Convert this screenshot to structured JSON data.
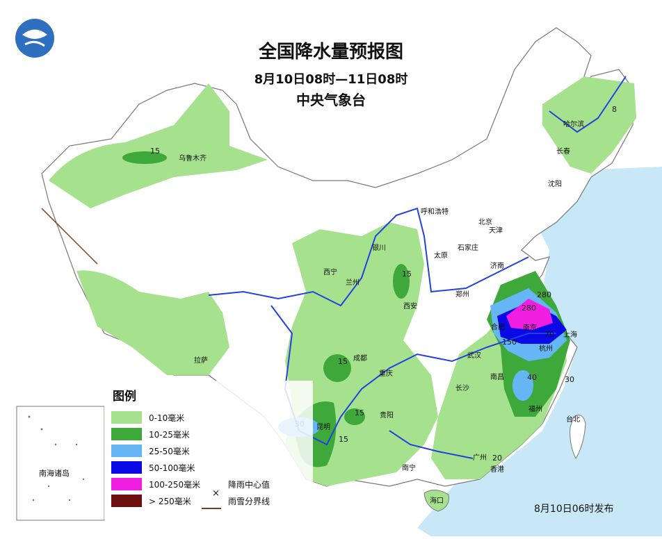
{
  "title": "全国降水量预报图",
  "subtitle": "8月10日08时—11日08时",
  "agency": "中央气象台",
  "release": "8月10日06时发布",
  "inset_label": "南海诸岛",
  "legend": {
    "title": "图例",
    "items": [
      {
        "label": "0-10毫米",
        "color": "#a6e28d"
      },
      {
        "label": "10-25毫米",
        "color": "#3fa83a"
      },
      {
        "label": "25-50毫米",
        "color": "#66b6f5"
      },
      {
        "label": "50-100毫米",
        "color": "#0a0ae6"
      },
      {
        "label": "100-250毫米",
        "color": "#f01ee1"
      },
      {
        "label": "> 250毫米",
        "color": "#6b0f0f"
      }
    ],
    "center_label": "降雨中心值",
    "boundary_label": "雨雪分界线"
  },
  "colors": {
    "sea": "#c8e8f7",
    "border": "#777777",
    "river": "#2340e0",
    "boundary_line": "#7a3b1b"
  },
  "cities": [
    "乌鲁木齐",
    "哈尔滨",
    "长春",
    "沈阳",
    "呼和浩特",
    "北京",
    "天津",
    "石家庄",
    "太原",
    "济南",
    "银川",
    "西宁",
    "兰州",
    "西安",
    "郑州",
    "合肥",
    "南京",
    "上海",
    "杭州",
    "武汉",
    "南昌",
    "长沙",
    "成都",
    "重庆",
    "贵阳",
    "昆明",
    "拉萨",
    "南宁",
    "广州",
    "香港",
    "福州",
    "台北",
    "海口"
  ],
  "rain_centers": [
    "15",
    "8",
    "15",
    "280",
    "280",
    "150",
    "70",
    "15",
    "40",
    "30",
    "30",
    "15",
    "15",
    "20"
  ]
}
